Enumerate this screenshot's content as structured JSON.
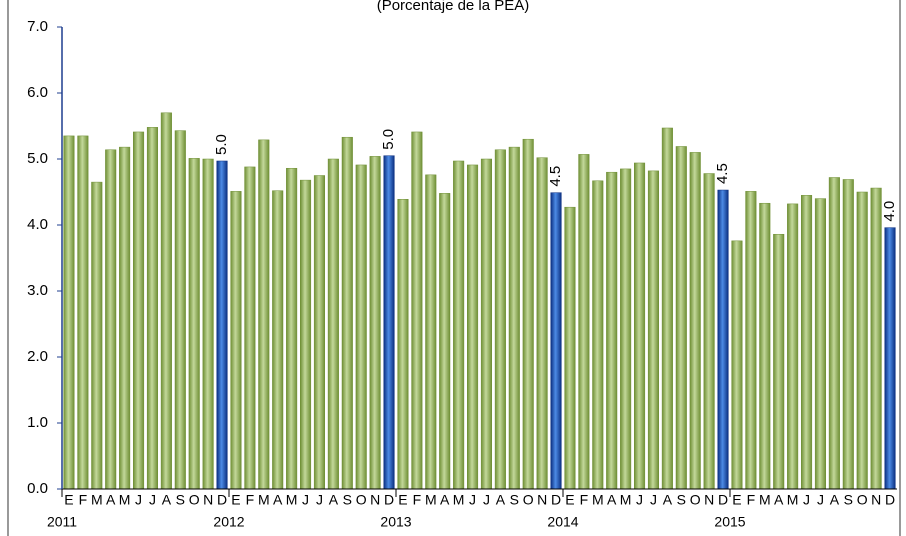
{
  "chart_data": {
    "type": "bar",
    "subtitle": "(Porcentaje de la PEA)",
    "categories": [
      "E",
      "F",
      "M",
      "A",
      "M",
      "J",
      "J",
      "A",
      "S",
      "O",
      "N",
      "D",
      "E",
      "F",
      "M",
      "A",
      "M",
      "J",
      "J",
      "A",
      "S",
      "O",
      "N",
      "D",
      "E",
      "F",
      "M",
      "A",
      "M",
      "J",
      "J",
      "A",
      "S",
      "O",
      "N",
      "D",
      "E",
      "F",
      "M",
      "A",
      "M",
      "J",
      "J",
      "A",
      "S",
      "O",
      "N",
      "D",
      "E",
      "F",
      "M",
      "A",
      "M",
      "J",
      "J",
      "A",
      "S",
      "O",
      "N",
      "D"
    ],
    "groups": [
      "2011",
      "2012",
      "2013",
      "2014",
      "2015"
    ],
    "values": [
      5.35,
      5.35,
      4.65,
      5.14,
      5.18,
      5.41,
      5.48,
      5.7,
      5.43,
      5.01,
      5.0,
      4.97,
      4.51,
      4.88,
      5.29,
      4.52,
      4.86,
      4.68,
      4.75,
      5.0,
      5.33,
      4.91,
      5.04,
      5.05,
      4.39,
      5.41,
      4.76,
      4.48,
      4.97,
      4.91,
      5.0,
      5.14,
      5.18,
      5.3,
      5.02,
      4.49,
      4.27,
      5.07,
      4.67,
      4.8,
      4.85,
      4.94,
      4.82,
      5.47,
      5.19,
      5.1,
      4.78,
      4.53,
      3.76,
      4.51,
      4.33,
      3.86,
      4.32,
      4.45,
      4.4,
      4.72,
      4.69,
      4.5,
      4.56,
      3.96
    ],
    "value_labels": [
      null,
      null,
      null,
      null,
      null,
      null,
      null,
      null,
      null,
      null,
      null,
      "5.0",
      null,
      null,
      null,
      null,
      null,
      null,
      null,
      null,
      null,
      null,
      null,
      "5.0",
      null,
      null,
      null,
      null,
      null,
      null,
      null,
      null,
      null,
      null,
      null,
      "4.5",
      null,
      null,
      null,
      null,
      null,
      null,
      null,
      null,
      null,
      null,
      null,
      "4.5",
      null,
      null,
      null,
      null,
      null,
      null,
      null,
      null,
      null,
      null,
      null,
      "4.0"
    ],
    "color": "#9bbb59",
    "highlight_color": "#1f5fc8",
    "ylim": [
      0,
      7
    ],
    "yticks": [
      {
        "value": 0,
        "label": "0.0"
      },
      {
        "value": 1,
        "label": "1.0"
      },
      {
        "value": 2,
        "label": "2.0"
      },
      {
        "value": 3,
        "label": "3.0"
      },
      {
        "value": 4,
        "label": "4.0"
      },
      {
        "value": 5,
        "label": "5.0"
      },
      {
        "value": 6,
        "label": "6.0"
      },
      {
        "value": 7,
        "label": "7.0"
      }
    ],
    "grid": false
  }
}
